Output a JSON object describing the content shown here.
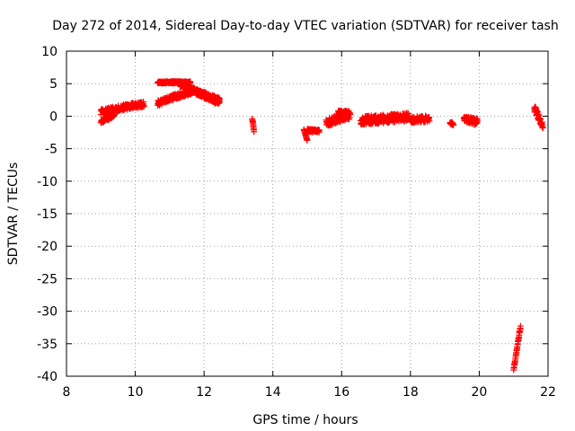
{
  "chart_data": {
    "type": "scatter",
    "title": "Day 272 of 2014, Sidereal Day-to-day VTEC variation (SDTVAR) for receiver tash",
    "xlabel": "GPS time / hours",
    "ylabel": "SDTVAR / TECUs",
    "xlim": [
      8,
      22
    ],
    "ylim": [
      -40,
      10
    ],
    "xticks": [
      8,
      10,
      12,
      14,
      16,
      18,
      20,
      22
    ],
    "yticks": [
      10,
      5,
      0,
      -5,
      -10,
      -15,
      -20,
      -25,
      -30,
      -35,
      -40
    ],
    "grid": true,
    "marker": "+",
    "color": "#ff0000",
    "segments": [
      {
        "x0": 9.0,
        "x1": 10.25,
        "y0": 0.7,
        "y1": 1.9,
        "spread": 0.9
      },
      {
        "x0": 9.0,
        "x1": 9.4,
        "y0": -0.8,
        "y1": 0.2,
        "spread": 0.6
      },
      {
        "x0": 10.65,
        "x1": 11.6,
        "y0": 5.2,
        "y1": 5.2,
        "spread": 0.3
      },
      {
        "x0": 11.3,
        "x1": 12.45,
        "y0": 5.0,
        "y1": 2.0,
        "spread": 0.8
      },
      {
        "x0": 10.65,
        "x1": 11.7,
        "y0": 2.0,
        "y1": 4.0,
        "spread": 0.9
      },
      {
        "x0": 11.7,
        "x1": 12.45,
        "y0": 4.0,
        "y1": 2.5,
        "spread": 0.7
      },
      {
        "x0": 13.4,
        "x1": 13.45,
        "y0": -0.3,
        "y1": -2.3,
        "spread": 0.2
      },
      {
        "x0": 14.9,
        "x1": 15.0,
        "y0": -2.0,
        "y1": -3.8,
        "spread": 0.2
      },
      {
        "x0": 15.0,
        "x1": 15.35,
        "y0": -2.2,
        "y1": -2.3,
        "spread": 0.5
      },
      {
        "x0": 15.55,
        "x1": 16.25,
        "y0": -1.0,
        "y1": 0.2,
        "spread": 1.2
      },
      {
        "x0": 15.9,
        "x1": 16.2,
        "y0": 0.6,
        "y1": 0.6,
        "spread": 0.5
      },
      {
        "x0": 16.55,
        "x1": 17.95,
        "y0": -0.7,
        "y1": -0.1,
        "spread": 1.3
      },
      {
        "x0": 18.0,
        "x1": 18.55,
        "y0": -0.6,
        "y1": -0.4,
        "spread": 1.0
      },
      {
        "x0": 19.15,
        "x1": 19.25,
        "y0": -1.0,
        "y1": -1.2,
        "spread": 0.4
      },
      {
        "x0": 19.55,
        "x1": 19.95,
        "y0": -0.4,
        "y1": -0.9,
        "spread": 1.0
      },
      {
        "x0": 21.0,
        "x1": 21.2,
        "y0": -39.0,
        "y1": -32.3,
        "spread": 0.2
      },
      {
        "x0": 21.6,
        "x1": 21.85,
        "y0": 1.3,
        "y1": -1.5,
        "spread": 1.1
      }
    ]
  }
}
